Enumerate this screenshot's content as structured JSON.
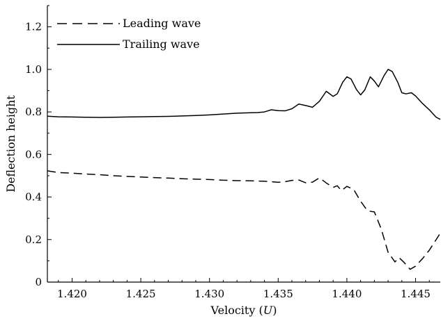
{
  "chart_data": {
    "type": "line",
    "title": "",
    "xlabel_prefix": "Velocity (",
    "xlabel_var": "U",
    "xlabel_suffix": ")",
    "ylabel": "Deflection height",
    "xlim": [
      1.4182,
      1.4468
    ],
    "ylim": [
      0,
      1.3
    ],
    "xticks": [
      "1.420",
      "1.425",
      "1.430",
      "1.435",
      "1.440",
      "1.445"
    ],
    "yticks": [
      "0",
      "0.2",
      "0.4",
      "0.6",
      "0.8",
      "1.0",
      "1.2"
    ],
    "grid": false,
    "legend_position": "top-left",
    "series": [
      {
        "name": "Leading wave",
        "style": "dashed",
        "color": "#000000",
        "points": [
          [
            1.4182,
            0.523
          ],
          [
            1.419,
            0.515
          ],
          [
            1.42,
            0.512
          ],
          [
            1.421,
            0.508
          ],
          [
            1.422,
            0.505
          ],
          [
            1.423,
            0.5
          ],
          [
            1.424,
            0.497
          ],
          [
            1.425,
            0.494
          ],
          [
            1.426,
            0.491
          ],
          [
            1.427,
            0.489
          ],
          [
            1.428,
            0.486
          ],
          [
            1.429,
            0.484
          ],
          [
            1.43,
            0.482
          ],
          [
            1.431,
            0.479
          ],
          [
            1.432,
            0.477
          ],
          [
            1.433,
            0.476
          ],
          [
            1.434,
            0.474
          ],
          [
            1.4345,
            0.472
          ],
          [
            1.435,
            0.469
          ],
          [
            1.4355,
            0.472
          ],
          [
            1.436,
            0.478
          ],
          [
            1.4365,
            0.48
          ],
          [
            1.437,
            0.467
          ],
          [
            1.4375,
            0.47
          ],
          [
            1.438,
            0.49
          ],
          [
            1.4385,
            0.466
          ],
          [
            1.439,
            0.445
          ],
          [
            1.4393,
            0.453
          ],
          [
            1.4396,
            0.43
          ],
          [
            1.44,
            0.45
          ],
          [
            1.4405,
            0.435
          ],
          [
            1.441,
            0.38
          ],
          [
            1.4415,
            0.335
          ],
          [
            1.442,
            0.33
          ],
          [
            1.4425,
            0.25
          ],
          [
            1.443,
            0.14
          ],
          [
            1.4435,
            0.095
          ],
          [
            1.4438,
            0.115
          ],
          [
            1.4442,
            0.09
          ],
          [
            1.4446,
            0.06
          ],
          [
            1.445,
            0.075
          ],
          [
            1.4455,
            0.11
          ],
          [
            1.446,
            0.15
          ],
          [
            1.4465,
            0.2
          ],
          [
            1.4468,
            0.23
          ]
        ]
      },
      {
        "name": "Trailing wave",
        "style": "solid",
        "color": "#000000",
        "points": [
          [
            1.4182,
            0.78
          ],
          [
            1.419,
            0.777
          ],
          [
            1.42,
            0.776
          ],
          [
            1.421,
            0.775
          ],
          [
            1.422,
            0.774
          ],
          [
            1.423,
            0.775
          ],
          [
            1.424,
            0.776
          ],
          [
            1.425,
            0.777
          ],
          [
            1.426,
            0.778
          ],
          [
            1.427,
            0.779
          ],
          [
            1.428,
            0.781
          ],
          [
            1.429,
            0.783
          ],
          [
            1.43,
            0.786
          ],
          [
            1.431,
            0.79
          ],
          [
            1.432,
            0.794
          ],
          [
            1.433,
            0.796
          ],
          [
            1.4335,
            0.797
          ],
          [
            1.434,
            0.8
          ],
          [
            1.4345,
            0.81
          ],
          [
            1.435,
            0.806
          ],
          [
            1.4355,
            0.805
          ],
          [
            1.436,
            0.815
          ],
          [
            1.4365,
            0.837
          ],
          [
            1.437,
            0.83
          ],
          [
            1.4375,
            0.822
          ],
          [
            1.438,
            0.85
          ],
          [
            1.4385,
            0.897
          ],
          [
            1.439,
            0.873
          ],
          [
            1.4393,
            0.885
          ],
          [
            1.4397,
            0.94
          ],
          [
            1.44,
            0.965
          ],
          [
            1.4403,
            0.955
          ],
          [
            1.4407,
            0.905
          ],
          [
            1.441,
            0.88
          ],
          [
            1.4413,
            0.903
          ],
          [
            1.4417,
            0.965
          ],
          [
            1.442,
            0.945
          ],
          [
            1.4423,
            0.918
          ],
          [
            1.4427,
            0.97
          ],
          [
            1.443,
            1.0
          ],
          [
            1.4433,
            0.99
          ],
          [
            1.4437,
            0.94
          ],
          [
            1.444,
            0.89
          ],
          [
            1.4443,
            0.885
          ],
          [
            1.4447,
            0.89
          ],
          [
            1.445,
            0.875
          ],
          [
            1.4455,
            0.84
          ],
          [
            1.446,
            0.81
          ],
          [
            1.4465,
            0.775
          ],
          [
            1.4468,
            0.765
          ]
        ]
      }
    ]
  }
}
